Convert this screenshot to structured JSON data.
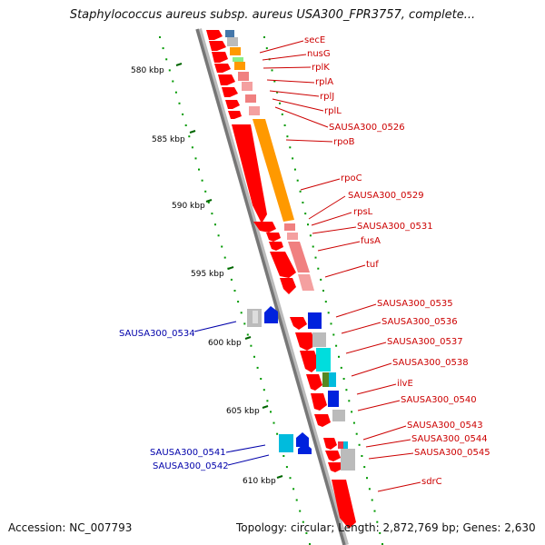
{
  "title": "Staphylococcus aureus subsp. aureus USA300_FPR3757, complete...",
  "accession": "Accession: NC_007793",
  "summary": "Topology: circular; Length: 2,872,769 bp; Genes: 2,630",
  "kbp_ticks": [
    "580 kbp",
    "585 kbp",
    "590 kbp",
    "595 kbp",
    "600 kbp",
    "605 kbp",
    "610 kbp"
  ],
  "forward_genes": [
    "secE",
    "nusG",
    "rplK",
    "rplA",
    "rplJ",
    "rplL",
    "SAUSA300_0526",
    "rpoB",
    "rpoC",
    "SAUSA300_0529",
    "rpsL",
    "SAUSA300_0531",
    "fusA",
    "tuf",
    "SAUSA300_0535",
    "SAUSA300_0536",
    "SAUSA300_0537",
    "SAUSA300_0538",
    "ilvE",
    "SAUSA300_0540",
    "SAUSA300_0543",
    "SAUSA300_0544",
    "SAUSA300_0545",
    "sdrC"
  ],
  "reverse_genes": [
    "SAUSA300_0534",
    "SAUSA300_0541",
    "SAUSA300_0542"
  ],
  "colors": {
    "gene": "#ff0000",
    "forward_label": "#cc0000",
    "reverse_label": "#0000aa",
    "backbone": "#808080",
    "tick": "#006600",
    "dots": "#009900"
  }
}
